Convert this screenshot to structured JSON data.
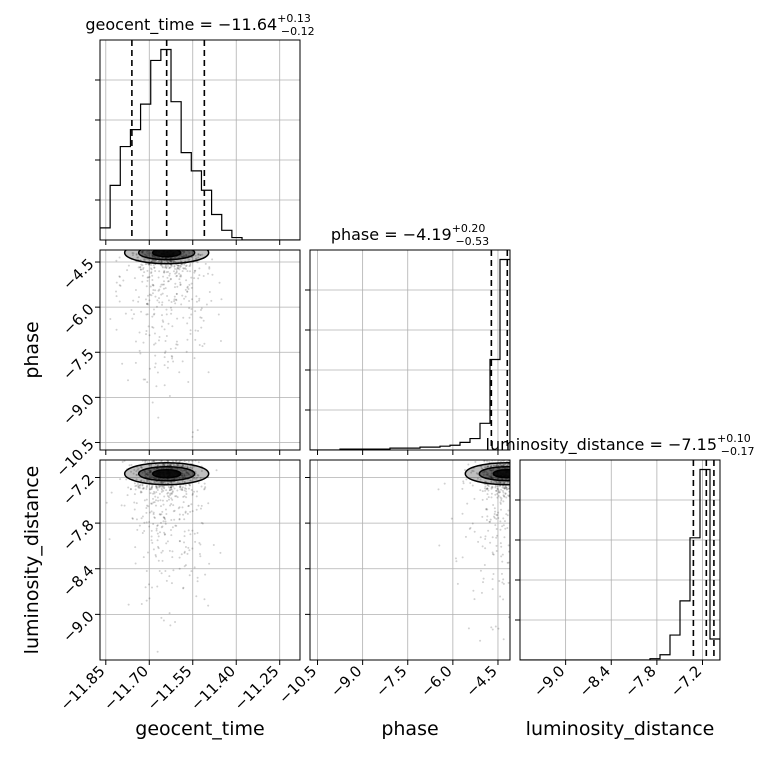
{
  "chart_data": {
    "type": "corner",
    "params": [
      "geocent_time",
      "phase",
      "luminosity_distance"
    ],
    "axis_labels": {
      "geocent_time": "geocent_time",
      "phase": "phase",
      "luminosity_distance": "luminosity_distance"
    },
    "ranges": {
      "geocent_time": [
        -11.87,
        -11.18
      ],
      "phase": [
        -10.75,
        -4.1
      ],
      "luminosity_distance": [
        -9.6,
        -6.97
      ]
    },
    "ticks": {
      "geocent_time": {
        "values": [
          -11.85,
          -11.7,
          -11.55,
          -11.4,
          -11.25
        ],
        "labels": [
          "−11.85",
          "−11.70",
          "−11.55",
          "−11.40",
          "−11.25"
        ]
      },
      "phase": {
        "values": [
          -10.5,
          -9.0,
          -7.5,
          -6.0,
          -4.5
        ],
        "labels": [
          "−10.5",
          "−9.0",
          "−7.5",
          "−6.0",
          "−4.5"
        ]
      },
      "luminosity_distance": {
        "values": [
          -9.0,
          -8.4,
          -7.8,
          -7.2
        ],
        "labels": [
          "−9.0",
          "−8.4",
          "−7.8",
          "−7.2"
        ]
      }
    },
    "titles": {
      "geocent_time": {
        "main": "geocent_time = −11.64",
        "sup": "+0.13",
        "sub": "−0.12"
      },
      "phase": {
        "main": "phase = −4.19",
        "sup": "+0.20",
        "sub": "−0.53"
      },
      "luminosity_distance": {
        "main": "luminosity_distance = −7.15",
        "sup": "+0.10",
        "sub": "−0.17"
      }
    },
    "quantiles": {
      "geocent_time": [
        -11.76,
        -11.64,
        -11.51
      ],
      "phase": [
        -4.72,
        -4.19,
        -3.99
      ],
      "luminosity_distance": [
        -7.32,
        -7.15,
        -7.05
      ]
    },
    "histograms": {
      "geocent_time": {
        "edges": [
          -11.87,
          -11.835,
          -11.8,
          -11.765,
          -11.73,
          -11.695,
          -11.66,
          -11.625,
          -11.59,
          -11.555,
          -11.52,
          -11.485,
          -11.45,
          -11.415,
          -11.38,
          -11.345,
          -11.31,
          -11.275,
          -11.24,
          -11.205,
          -11.18
        ],
        "counts": [
          10,
          45,
          77,
          91,
          112,
          148,
          157,
          114,
          72,
          57,
          41,
          21,
          8,
          2,
          0,
          0,
          0,
          0,
          0,
          0
        ]
      },
      "phase": {
        "edges": [
          -10.75,
          -10.4175,
          -10.085,
          -9.7525,
          -9.42,
          -9.0875,
          -8.755,
          -8.4225,
          -8.09,
          -7.7575,
          -7.425,
          -7.0925,
          -6.76,
          -6.4275,
          -6.095,
          -5.7625,
          -5.43,
          -5.0975,
          -4.765,
          -4.4325,
          -4.1
        ],
        "counts": [
          0,
          0,
          0,
          1,
          1,
          1,
          1,
          1,
          2,
          2,
          2,
          3,
          3,
          4,
          5,
          8,
          12,
          28,
          95,
          200
        ]
      },
      "luminosity_distance": {
        "edges": [
          -9.6,
          -9.4685,
          -9.337,
          -9.2055,
          -9.074,
          -8.9425,
          -8.811,
          -8.6795,
          -8.548,
          -8.4165,
          -8.285,
          -8.1535,
          -8.022,
          -7.8905,
          -7.759,
          -7.6275,
          -7.496,
          -7.3645,
          -7.233,
          -7.1015,
          -6.97
        ],
        "counts": [
          0,
          0,
          0,
          0,
          0,
          0,
          0,
          0,
          0,
          0,
          0,
          0,
          0,
          1,
          4,
          19,
          45,
          93,
          145,
          16
        ]
      }
    },
    "legend": "none"
  }
}
